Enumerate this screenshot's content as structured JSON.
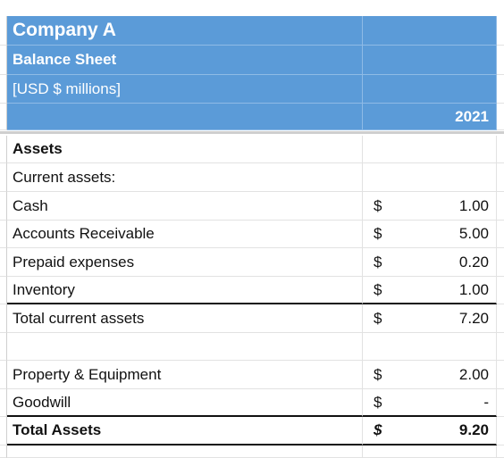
{
  "header": {
    "company": "Company A",
    "statement": "Balance Sheet",
    "units": "[USD $ millions]",
    "year": "2021"
  },
  "assets": {
    "section_label": "Assets",
    "current_label": "Current assets:",
    "rows": [
      {
        "label": "Cash",
        "currency": "$",
        "value": "1.00"
      },
      {
        "label": "Accounts Receivable",
        "currency": "$",
        "value": "5.00"
      },
      {
        "label": "Prepaid expenses",
        "currency": "$",
        "value": "0.20"
      },
      {
        "label": "Inventory",
        "currency": "$",
        "value": "1.00"
      }
    ],
    "total_current": {
      "label": "Total current assets",
      "currency": "$",
      "value": "7.20"
    },
    "other_rows": [
      {
        "label": "Property & Equipment",
        "currency": "$",
        "value": "2.00"
      },
      {
        "label": "Goodwill",
        "currency": "$",
        "value": "-"
      }
    ],
    "total_assets": {
      "label": "Total Assets",
      "currency": "$",
      "value": "9.20"
    }
  },
  "colors": {
    "header_fill": "#5b9bd8",
    "header_text": "#ffffff"
  }
}
